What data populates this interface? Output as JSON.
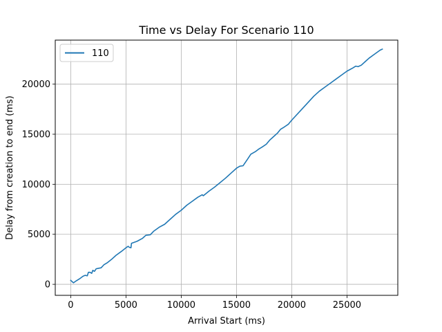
{
  "chart_data": {
    "type": "line",
    "title": "Time vs Delay For Scenario 110",
    "xlabel": "Arrival Start (ms)",
    "ylabel": "Delay from creation to end (ms)",
    "xlim": [
      -1400,
      29600
    ],
    "ylim": [
      -1100,
      24400
    ],
    "xticks": [
      0,
      5000,
      10000,
      15000,
      20000,
      25000
    ],
    "yticks": [
      0,
      5000,
      10000,
      15000,
      20000
    ],
    "grid": true,
    "legend_position": "top-left",
    "series": [
      {
        "name": "110",
        "color": "#1f77b4",
        "x": [
          0,
          250,
          500,
          800,
          1100,
          1300,
          1500,
          1600,
          1750,
          1900,
          2000,
          2150,
          2300,
          2500,
          2750,
          3000,
          3300,
          3700,
          4100,
          4600,
          5000,
          5200,
          5300,
          5450,
          5500,
          6000,
          6500,
          6800,
          7200,
          7500,
          8000,
          8500,
          9000,
          9500,
          10000,
          10500,
          11000,
          11500,
          11900,
          12000,
          12500,
          13000,
          13500,
          14000,
          14500,
          15000,
          15300,
          15600,
          16000,
          16300,
          16700,
          17000,
          17300,
          17700,
          18000,
          18300,
          18700,
          19000,
          19300,
          19700,
          20000,
          21000,
          22000,
          22500,
          23000,
          23500,
          24000,
          24500,
          25000,
          25500,
          25800,
          26000,
          26300,
          26700,
          27000,
          27500,
          28000,
          28200
        ],
        "y": [
          400,
          150,
          350,
          550,
          800,
          900,
          850,
          1200,
          1200,
          1100,
          1400,
          1300,
          1550,
          1600,
          1650,
          1950,
          2150,
          2500,
          2900,
          3300,
          3650,
          3800,
          3700,
          3650,
          4100,
          4300,
          4600,
          4900,
          4950,
          5300,
          5700,
          6000,
          6500,
          7000,
          7400,
          7900,
          8300,
          8700,
          8950,
          8850,
          9300,
          9700,
          10150,
          10600,
          11100,
          11600,
          11800,
          11850,
          12500,
          13000,
          13250,
          13500,
          13700,
          14000,
          14400,
          14700,
          15100,
          15500,
          15700,
          16000,
          16400,
          17600,
          18800,
          19300,
          19700,
          20100,
          20500,
          20900,
          21300,
          21600,
          21800,
          21750,
          21900,
          22300,
          22600,
          23000,
          23400,
          23500
        ]
      }
    ]
  }
}
